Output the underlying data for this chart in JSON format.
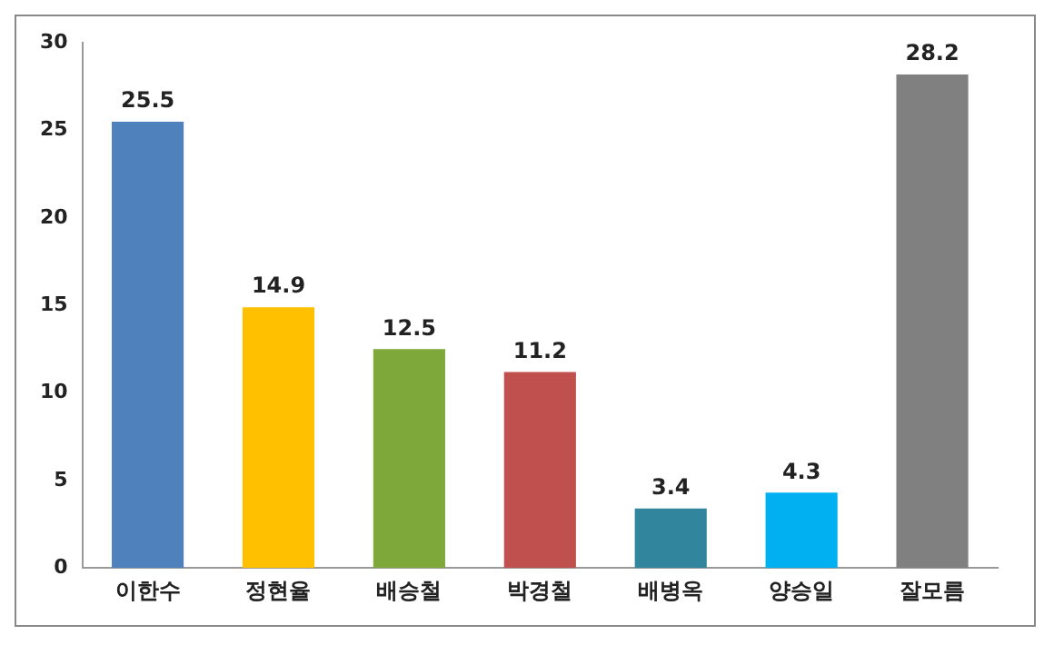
{
  "chart_data": {
    "type": "bar",
    "categories": [
      "이한수",
      "정현율",
      "배승철",
      "박경철",
      "배병옥",
      "양승일",
      "잘모름"
    ],
    "values": [
      25.5,
      14.9,
      12.5,
      11.2,
      3.4,
      4.3,
      28.2
    ],
    "colors": [
      "#4f81bd",
      "#ffc000",
      "#7ea83a",
      "#c0504d",
      "#31859c",
      "#00b0f0",
      "#808080"
    ],
    "ylim": [
      0,
      30
    ],
    "yticks": [
      0,
      5,
      10,
      15,
      20,
      25,
      30
    ],
    "data_labels": true,
    "grid": false,
    "legend": false
  }
}
